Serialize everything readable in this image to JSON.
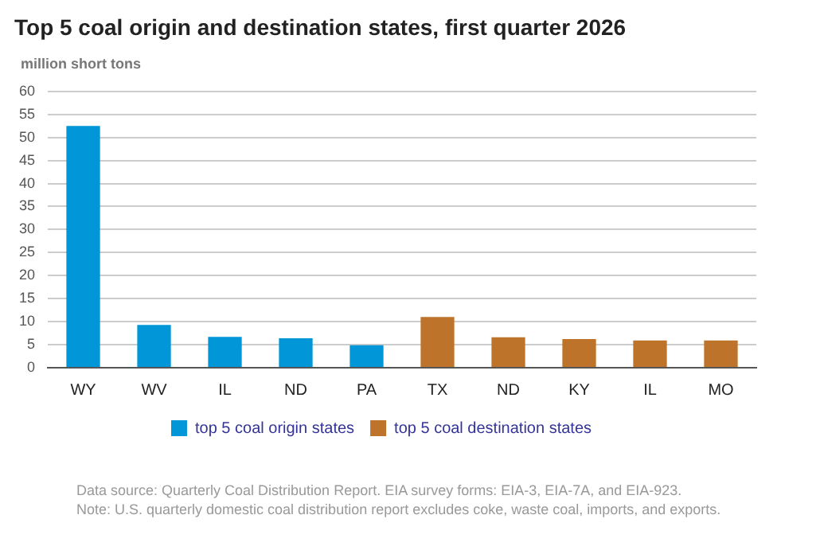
{
  "chart_data": {
    "type": "bar",
    "title": "Top 5 coal origin and destination states, first quarter 2026",
    "ylabel": "million short tons",
    "categories": [
      "WY",
      "WV",
      "IL",
      "ND",
      "PA",
      "TX",
      "ND",
      "KY",
      "IL",
      "MO"
    ],
    "series": [
      {
        "name": "top 5 coal origin states",
        "color": "#0096d7",
        "values": [
          52.5,
          9.3,
          6.7,
          6.4,
          4.9,
          null,
          null,
          null,
          null,
          null
        ]
      },
      {
        "name": "top 5 coal destination states",
        "color": "#bd732a",
        "values": [
          null,
          null,
          null,
          null,
          null,
          11,
          6.6,
          6.2,
          5.9,
          5.9
        ]
      }
    ],
    "ylim": [
      0,
      60
    ],
    "yticks": [
      0,
      5,
      10,
      15,
      20,
      25,
      30,
      35,
      40,
      45,
      50,
      55,
      60
    ],
    "grid": "y",
    "legend": "bottom",
    "annotations": [
      "Data source: Quarterly Coal Distribution Report. EIA survey forms: EIA-3, EIA-7A, and EIA-923.",
      "Note: U.S. quarterly domestic coal distribution report excludes coke, waste coal, imports, and exports."
    ]
  }
}
